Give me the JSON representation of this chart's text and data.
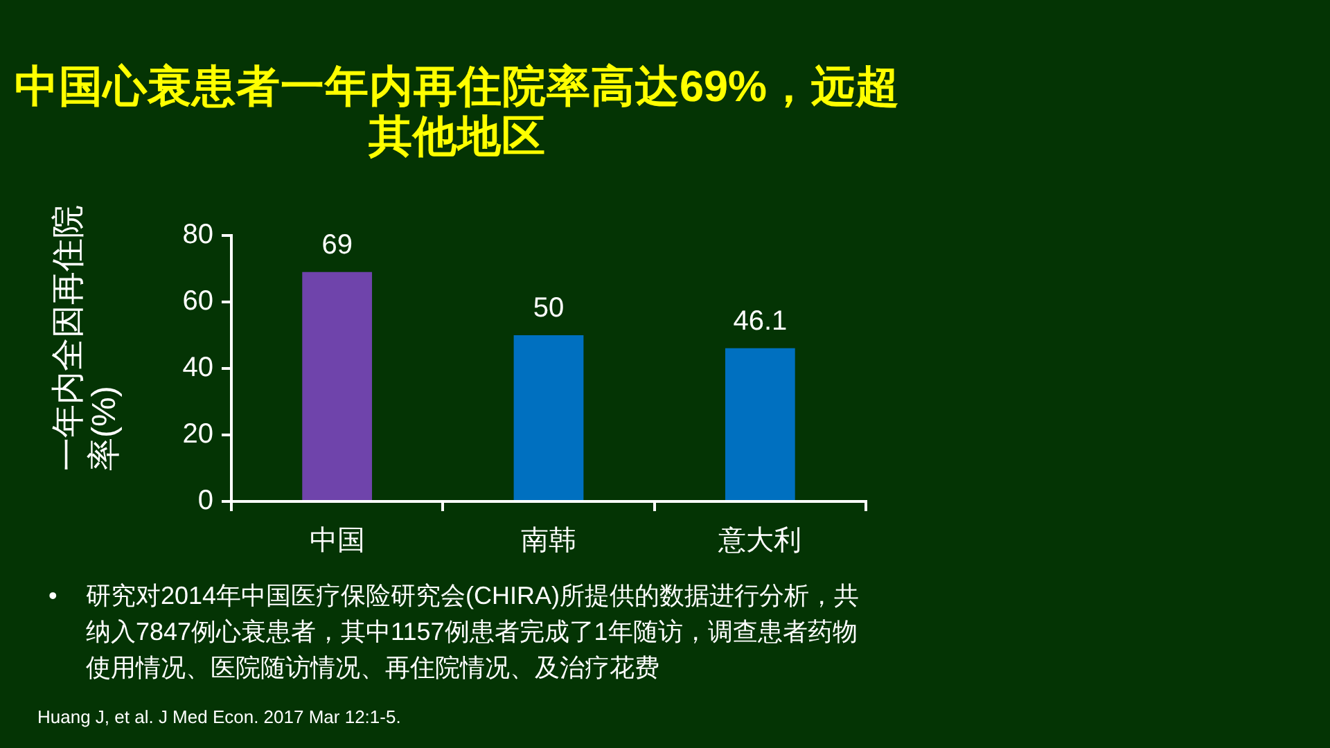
{
  "chart_data": {
    "type": "bar",
    "title": "中国心衰患者一年内再住院率高达69%，远超其他地区",
    "ylabel": "一年内全因再住院率(%)",
    "categories": [
      "中国",
      "南韩",
      "意大利"
    ],
    "values": [
      69,
      50,
      46.1
    ],
    "colors": [
      "#6f44ab",
      "#0070c0",
      "#0070c0"
    ],
    "ylim": [
      0,
      80
    ],
    "yticks": [
      0,
      20,
      40,
      60,
      80
    ],
    "data_labels": true,
    "annotations": [
      "• 研究对2014年中国医疗保险研究会(CHIRA)所提供的数据进行分析，共纳入7847例心衰患者，其中1157例患者完成了1年随访，调查患者药物使用情况、医院随访情况、再住院情况、及治疗花费",
      "Huang J, et al. J Med Econ. 2017 Mar 12:1-5."
    ]
  }
}
